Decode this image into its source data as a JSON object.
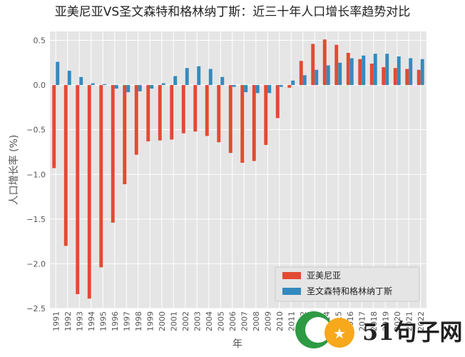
{
  "chart_data": {
    "type": "bar",
    "title": "亚美尼亚VS圣文森特和格林纳丁斯：近三十年人口增长率趋势对比",
    "xlabel": "年",
    "ylabel": "人口增长率 (%)",
    "ylim": [
      -2.5,
      0.6
    ],
    "yticks": [
      0.5,
      0.0,
      -0.5,
      -1.0,
      -1.5,
      -2.0,
      -2.5
    ],
    "ytick_labels": [
      "0.5",
      "0.0",
      "−0.5",
      "−1.0",
      "−1.5",
      "−2.0",
      "−2.5"
    ],
    "grid": true,
    "legend_position": "lower-right",
    "categories": [
      "1991",
      "1992",
      "1993",
      "1994",
      "1995",
      "1996",
      "1997",
      "1998",
      "1999",
      "2000",
      "2001",
      "2002",
      "2003",
      "2004",
      "2005",
      "2006",
      "2007",
      "2008",
      "2009",
      "2010",
      "2011",
      "2012",
      "2013",
      "2014",
      "2015",
      "2016",
      "2017",
      "2018",
      "2019",
      "2020",
      "2021",
      "2022"
    ],
    "series": [
      {
        "name": "亚美尼亚",
        "color": "#E24A33",
        "values": [
          -0.93,
          -1.8,
          -2.34,
          -2.39,
          -2.04,
          -1.54,
          -1.11,
          -0.78,
          -0.63,
          -0.62,
          -0.61,
          -0.54,
          -0.52,
          -0.57,
          -0.64,
          -0.76,
          -0.87,
          -0.85,
          -0.67,
          -0.37,
          -0.03,
          0.27,
          0.46,
          0.51,
          0.45,
          0.36,
          0.29,
          0.24,
          0.2,
          0.19,
          0.18,
          0.17
        ]
      },
      {
        "name": "圣文森特和格林纳丁斯",
        "color": "#348ABD",
        "values": [
          0.26,
          0.16,
          0.09,
          0.02,
          0.01,
          -0.04,
          -0.08,
          -0.07,
          -0.04,
          0.02,
          0.1,
          0.19,
          0.21,
          0.18,
          0.09,
          -0.02,
          -0.08,
          -0.09,
          -0.09,
          -0.02,
          0.05,
          0.11,
          0.17,
          0.22,
          0.25,
          0.3,
          0.33,
          0.35,
          0.35,
          0.32,
          0.3,
          0.29
        ]
      }
    ]
  },
  "watermark": {
    "text": "51句子网"
  }
}
